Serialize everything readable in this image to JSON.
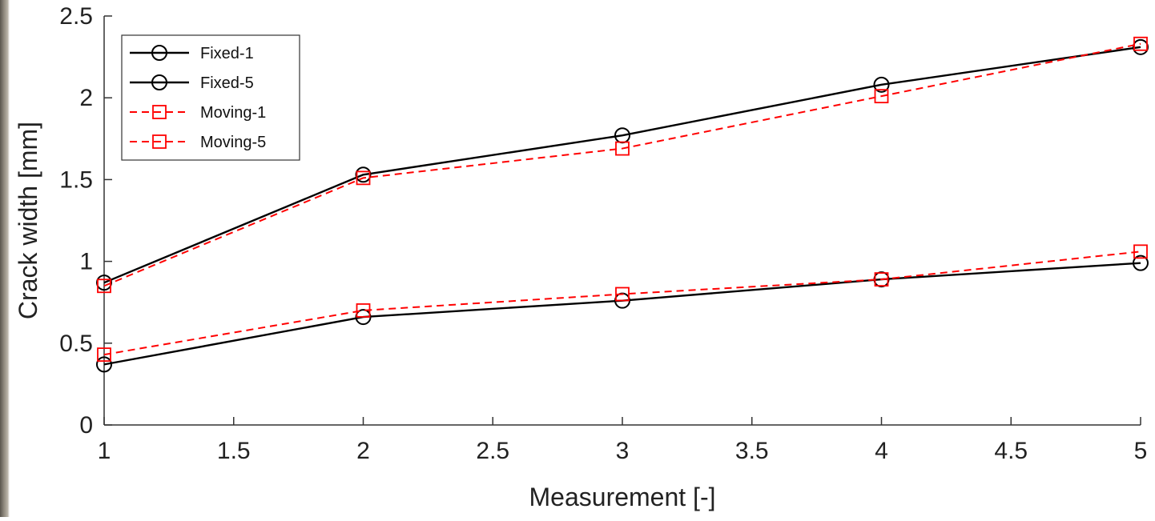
{
  "chart_data": {
    "type": "line",
    "xlabel": "Measurement [-]",
    "ylabel": "Crack width [mm]",
    "xlim": [
      1,
      5
    ],
    "ylim": [
      0,
      2.5
    ],
    "xticks": [
      "1",
      "1.5",
      "2",
      "2.5",
      "3",
      "3.5",
      "4",
      "4.5",
      "5"
    ],
    "yticks": [
      "0",
      "0.5",
      "1",
      "1.5",
      "2",
      "2.5"
    ],
    "grid": false,
    "legend_position": "top-left",
    "x": [
      1,
      2,
      3,
      4,
      5
    ],
    "series": [
      {
        "name": "Fixed-1",
        "color": "#000000",
        "style": "solid",
        "marker": "circle",
        "y": [
          0.87,
          1.53,
          1.77,
          2.08,
          2.31
        ]
      },
      {
        "name": "Fixed-5",
        "color": "#000000",
        "style": "solid",
        "marker": "circle",
        "y": [
          0.37,
          0.66,
          0.76,
          0.89,
          0.99
        ]
      },
      {
        "name": "Moving-1",
        "color": "#ff0000",
        "style": "dashed",
        "marker": "square",
        "y": [
          0.85,
          1.51,
          1.69,
          2.01,
          2.33
        ]
      },
      {
        "name": "Moving-5",
        "color": "#ff0000",
        "style": "dashed",
        "marker": "square",
        "y": [
          0.43,
          0.7,
          0.8,
          0.89,
          1.06
        ]
      }
    ]
  }
}
